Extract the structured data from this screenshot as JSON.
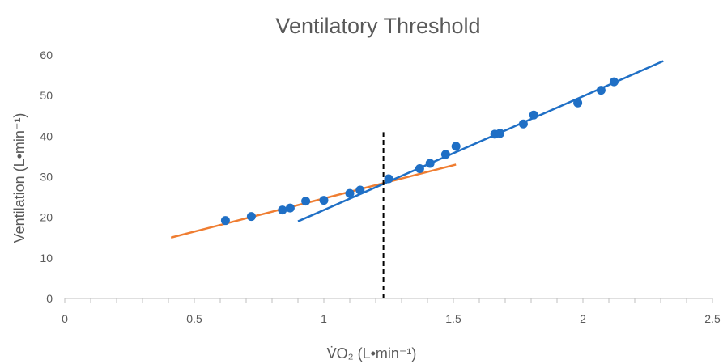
{
  "chart_data": {
    "type": "scatter",
    "title": "Ventilatory Threshold",
    "xlabel": "V̇O₂ (L•min⁻¹)",
    "ylabel": "Ventilation (L•min⁻¹)",
    "xlim": [
      0,
      2.5
    ],
    "ylim": [
      0,
      60
    ],
    "x_ticks": [
      0,
      0.5,
      1,
      1.5,
      2,
      2.5
    ],
    "x_tick_labels": [
      "0",
      "0.5",
      "1",
      "1.5",
      "2",
      "2.5"
    ],
    "y_ticks": [
      0,
      10,
      20,
      30,
      40,
      50,
      60
    ],
    "y_tick_labels": [
      "0",
      "10",
      "20",
      "30",
      "40",
      "50",
      "60"
    ],
    "grid": false,
    "legend": "none",
    "points": {
      "color": "#1f6fc5",
      "x": [
        0.62,
        0.72,
        0.84,
        0.87,
        0.93,
        1.0,
        1.1,
        1.14,
        1.25,
        1.37,
        1.41,
        1.47,
        1.51,
        1.66,
        1.68,
        1.77,
        1.81,
        1.98,
        2.07,
        2.12
      ],
      "y": [
        19.2,
        20.2,
        21.8,
        22.3,
        24.0,
        24.2,
        25.9,
        26.7,
        29.5,
        32.0,
        33.3,
        35.5,
        37.5,
        40.5,
        40.7,
        43.0,
        45.2,
        48.2,
        51.3,
        53.4
      ]
    },
    "lines": [
      {
        "color": "#ef7d31",
        "x": [
          0.41,
          1.51
        ],
        "y": [
          15.0,
          33.0
        ]
      },
      {
        "color": "#1f6fc5",
        "x": [
          0.9,
          2.31
        ],
        "y": [
          19.0,
          58.5
        ]
      }
    ],
    "threshold": {
      "x": 1.23,
      "y_range": [
        0,
        41
      ]
    }
  }
}
